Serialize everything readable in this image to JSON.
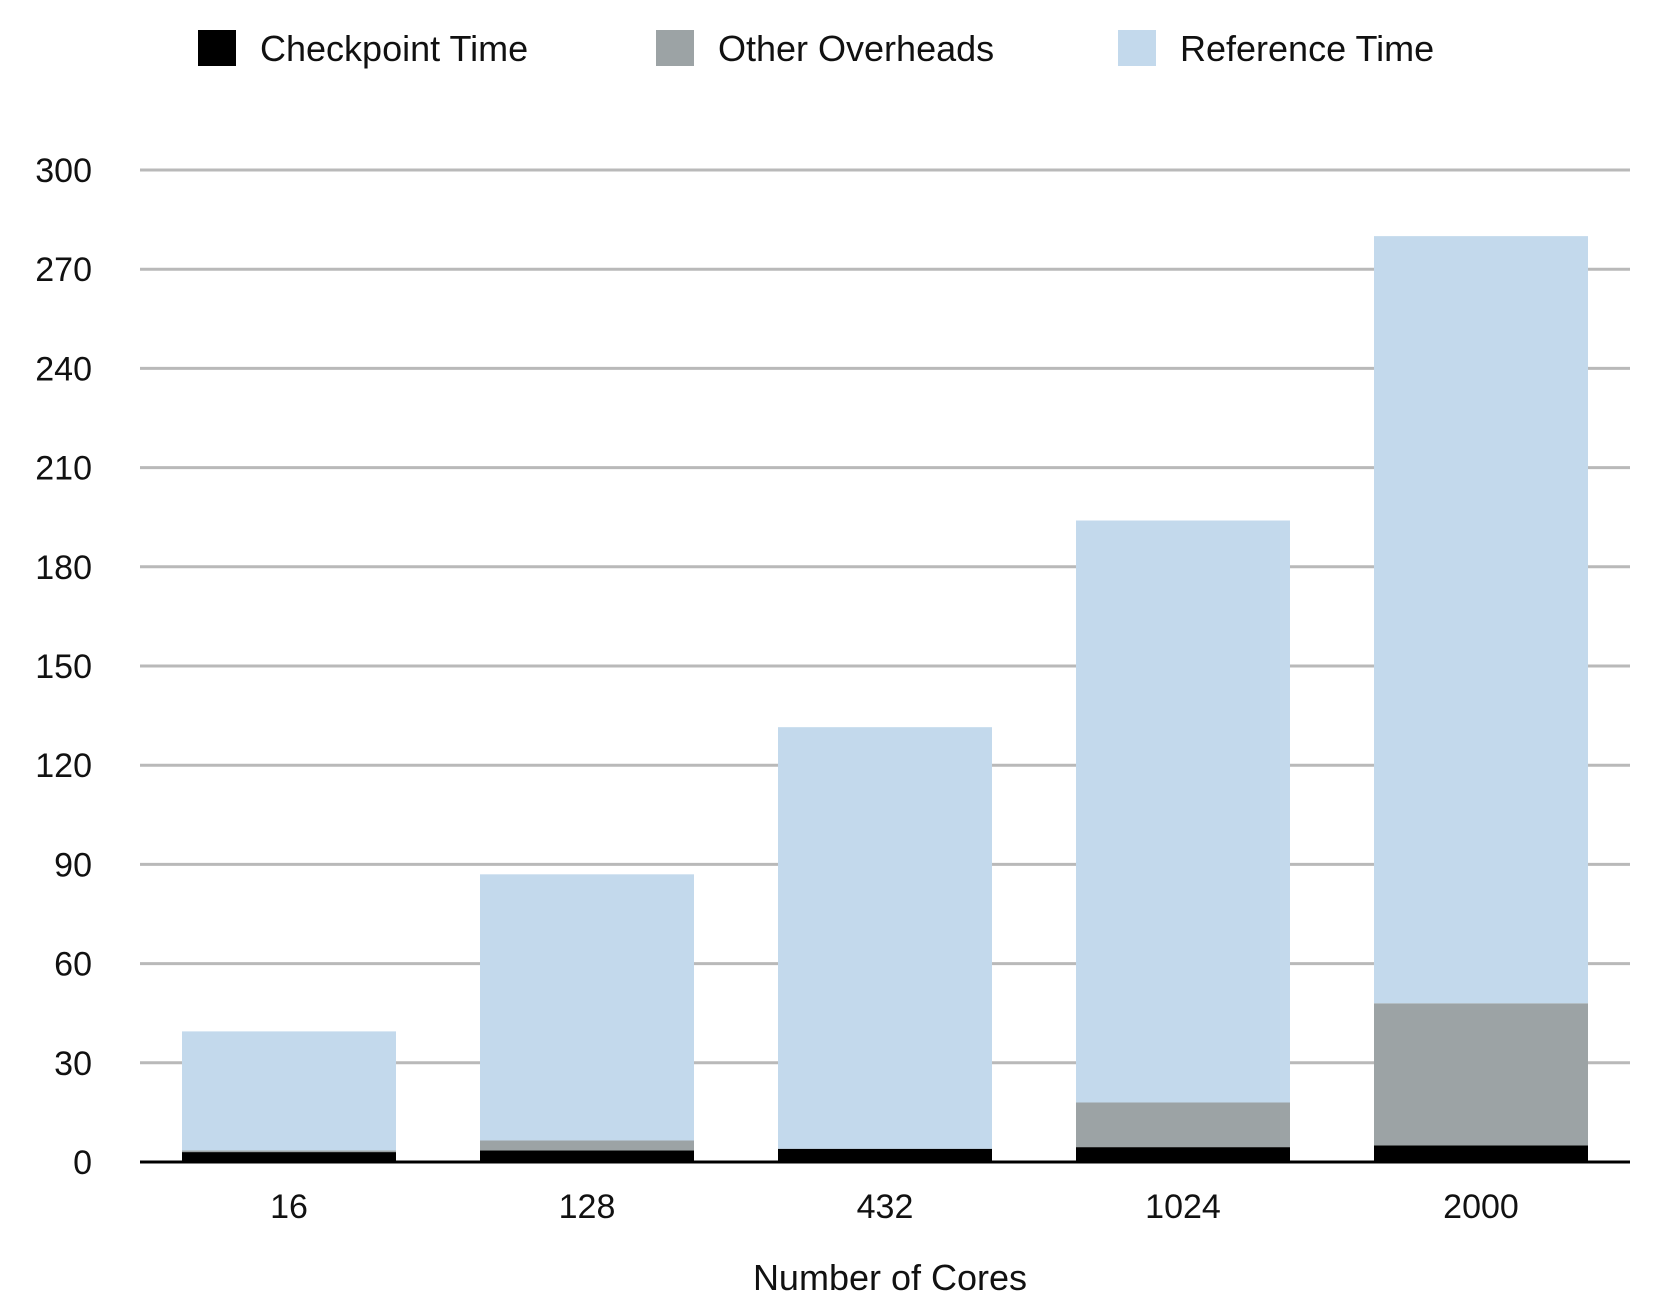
{
  "chart_data": {
    "type": "bar",
    "stacked": true,
    "title": "",
    "xlabel": "Number of Cores",
    "ylabel": "",
    "categories": [
      "16",
      "128",
      "432",
      "1024",
      "2000"
    ],
    "series": [
      {
        "name": "Checkpoint Time",
        "color": "#000000",
        "values": [
          3,
          3.5,
          4,
          4.5,
          5
        ]
      },
      {
        "name": "Other Overheads",
        "color": "#9ca3a5",
        "values": [
          0.5,
          3,
          0,
          13.5,
          43
        ]
      },
      {
        "name": "Reference Time",
        "color": "#c3d9ec",
        "values": [
          36,
          80.5,
          127.5,
          176,
          232
        ]
      }
    ],
    "ylim": [
      0,
      300
    ],
    "yticks": [
      0,
      30,
      60,
      90,
      120,
      150,
      180,
      210,
      240,
      270,
      300
    ],
    "grid": true,
    "legend_position": "top"
  }
}
